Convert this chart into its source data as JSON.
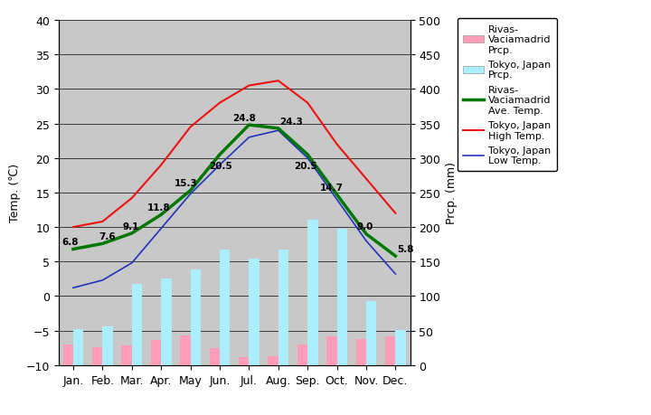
{
  "months": [
    "Jan.",
    "Feb.",
    "Mar.",
    "Apr.",
    "May",
    "Jun.",
    "Jul.",
    "Aug.",
    "Sep.",
    "Oct.",
    "Nov.",
    "Dec."
  ],
  "rivas_temp": [
    6.8,
    7.6,
    9.1,
    11.8,
    15.3,
    20.5,
    24.8,
    24.3,
    20.5,
    14.7,
    9.0,
    5.8
  ],
  "tokyo_high": [
    10.0,
    10.8,
    14.2,
    19.0,
    24.5,
    28.0,
    30.5,
    31.2,
    28.0,
    22.0,
    17.0,
    12.0
  ],
  "tokyo_low": [
    1.2,
    2.3,
    4.8,
    9.8,
    14.8,
    19.0,
    23.0,
    24.0,
    20.0,
    14.0,
    8.0,
    3.2
  ],
  "rivas_prcp": [
    30,
    26,
    28,
    37,
    43,
    24,
    11,
    13,
    30,
    42,
    38,
    42
  ],
  "tokyo_prcp": [
    52,
    56,
    118,
    125,
    138,
    168,
    154,
    168,
    210,
    197,
    93,
    51
  ],
  "rivas_temp_labels": [
    "6.8",
    "7.6",
    "9.1",
    "11.8",
    "15.3",
    "20.5",
    "24.8",
    "24.3",
    "20.5",
    "14.7",
    "9.0",
    "5.8"
  ],
  "temp_ylim_min": -10,
  "temp_ylim_max": 40,
  "prcp_ylim_min": 0,
  "prcp_ylim_max": 500,
  "rivas_bar_color": "#FF9DB8",
  "tokyo_bar_color": "#AAEEFF",
  "rivas_temp_color": "#007700",
  "tokyo_high_color": "#EE1111",
  "tokyo_low_color": "#2233BB",
  "bg_color": "#C8C8C8",
  "temp_ylabel": "Temp. (℃)",
  "prcp_ylabel": "Prcp. (mm)",
  "legend_rivas_prcp": "Rivas-\nVaciamadrid\nPrcp.",
  "legend_tokyo_prcp": "Tokyo, Japan\nPrcp.",
  "legend_rivas_temp": "Rivas-\nVaciamadrid\nAve. Temp.",
  "legend_tokyo_high": "Tokyo, Japan\nHigh Temp.",
  "legend_tokyo_low": "Tokyo, Japan\nLow Temp.",
  "label_offsets_x": [
    -0.38,
    -0.12,
    -0.32,
    -0.48,
    -0.55,
    -0.38,
    -0.55,
    0.05,
    -0.48,
    -0.58,
    -0.32,
    0.05
  ],
  "label_offsets_y": [
    0.7,
    0.7,
    0.7,
    0.7,
    0.7,
    -2.0,
    0.7,
    0.7,
    -2.0,
    0.7,
    0.7,
    0.7
  ]
}
